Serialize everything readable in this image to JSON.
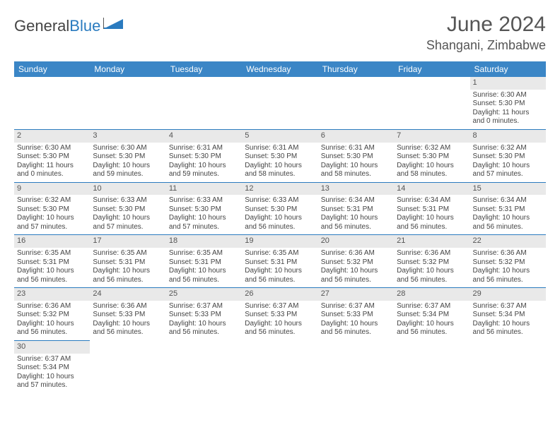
{
  "brand": {
    "part1": "General",
    "part2": "Blue"
  },
  "title": "June 2024",
  "location": "Shangani, Zimbabwe",
  "colors": {
    "header_bg": "#3b86c6",
    "header_text": "#ffffff",
    "daynum_bg": "#e9e9e9",
    "border": "#2a7bbf",
    "text": "#444444",
    "brand_blue": "#2a7bbf"
  },
  "day_headers": [
    "Sunday",
    "Monday",
    "Tuesday",
    "Wednesday",
    "Thursday",
    "Friday",
    "Saturday"
  ],
  "weeks": [
    [
      null,
      null,
      null,
      null,
      null,
      null,
      {
        "n": "1",
        "sr": "Sunrise: 6:30 AM",
        "ss": "Sunset: 5:30 PM",
        "d1": "Daylight: 11 hours",
        "d2": "and 0 minutes."
      }
    ],
    [
      {
        "n": "2",
        "sr": "Sunrise: 6:30 AM",
        "ss": "Sunset: 5:30 PM",
        "d1": "Daylight: 11 hours",
        "d2": "and 0 minutes."
      },
      {
        "n": "3",
        "sr": "Sunrise: 6:30 AM",
        "ss": "Sunset: 5:30 PM",
        "d1": "Daylight: 10 hours",
        "d2": "and 59 minutes."
      },
      {
        "n": "4",
        "sr": "Sunrise: 6:31 AM",
        "ss": "Sunset: 5:30 PM",
        "d1": "Daylight: 10 hours",
        "d2": "and 59 minutes."
      },
      {
        "n": "5",
        "sr": "Sunrise: 6:31 AM",
        "ss": "Sunset: 5:30 PM",
        "d1": "Daylight: 10 hours",
        "d2": "and 58 minutes."
      },
      {
        "n": "6",
        "sr": "Sunrise: 6:31 AM",
        "ss": "Sunset: 5:30 PM",
        "d1": "Daylight: 10 hours",
        "d2": "and 58 minutes."
      },
      {
        "n": "7",
        "sr": "Sunrise: 6:32 AM",
        "ss": "Sunset: 5:30 PM",
        "d1": "Daylight: 10 hours",
        "d2": "and 58 minutes."
      },
      {
        "n": "8",
        "sr": "Sunrise: 6:32 AM",
        "ss": "Sunset: 5:30 PM",
        "d1": "Daylight: 10 hours",
        "d2": "and 57 minutes."
      }
    ],
    [
      {
        "n": "9",
        "sr": "Sunrise: 6:32 AM",
        "ss": "Sunset: 5:30 PM",
        "d1": "Daylight: 10 hours",
        "d2": "and 57 minutes."
      },
      {
        "n": "10",
        "sr": "Sunrise: 6:33 AM",
        "ss": "Sunset: 5:30 PM",
        "d1": "Daylight: 10 hours",
        "d2": "and 57 minutes."
      },
      {
        "n": "11",
        "sr": "Sunrise: 6:33 AM",
        "ss": "Sunset: 5:30 PM",
        "d1": "Daylight: 10 hours",
        "d2": "and 57 minutes."
      },
      {
        "n": "12",
        "sr": "Sunrise: 6:33 AM",
        "ss": "Sunset: 5:30 PM",
        "d1": "Daylight: 10 hours",
        "d2": "and 56 minutes."
      },
      {
        "n": "13",
        "sr": "Sunrise: 6:34 AM",
        "ss": "Sunset: 5:31 PM",
        "d1": "Daylight: 10 hours",
        "d2": "and 56 minutes."
      },
      {
        "n": "14",
        "sr": "Sunrise: 6:34 AM",
        "ss": "Sunset: 5:31 PM",
        "d1": "Daylight: 10 hours",
        "d2": "and 56 minutes."
      },
      {
        "n": "15",
        "sr": "Sunrise: 6:34 AM",
        "ss": "Sunset: 5:31 PM",
        "d1": "Daylight: 10 hours",
        "d2": "and 56 minutes."
      }
    ],
    [
      {
        "n": "16",
        "sr": "Sunrise: 6:35 AM",
        "ss": "Sunset: 5:31 PM",
        "d1": "Daylight: 10 hours",
        "d2": "and 56 minutes."
      },
      {
        "n": "17",
        "sr": "Sunrise: 6:35 AM",
        "ss": "Sunset: 5:31 PM",
        "d1": "Daylight: 10 hours",
        "d2": "and 56 minutes."
      },
      {
        "n": "18",
        "sr": "Sunrise: 6:35 AM",
        "ss": "Sunset: 5:31 PM",
        "d1": "Daylight: 10 hours",
        "d2": "and 56 minutes."
      },
      {
        "n": "19",
        "sr": "Sunrise: 6:35 AM",
        "ss": "Sunset: 5:31 PM",
        "d1": "Daylight: 10 hours",
        "d2": "and 56 minutes."
      },
      {
        "n": "20",
        "sr": "Sunrise: 6:36 AM",
        "ss": "Sunset: 5:32 PM",
        "d1": "Daylight: 10 hours",
        "d2": "and 56 minutes."
      },
      {
        "n": "21",
        "sr": "Sunrise: 6:36 AM",
        "ss": "Sunset: 5:32 PM",
        "d1": "Daylight: 10 hours",
        "d2": "and 56 minutes."
      },
      {
        "n": "22",
        "sr": "Sunrise: 6:36 AM",
        "ss": "Sunset: 5:32 PM",
        "d1": "Daylight: 10 hours",
        "d2": "and 56 minutes."
      }
    ],
    [
      {
        "n": "23",
        "sr": "Sunrise: 6:36 AM",
        "ss": "Sunset: 5:32 PM",
        "d1": "Daylight: 10 hours",
        "d2": "and 56 minutes."
      },
      {
        "n": "24",
        "sr": "Sunrise: 6:36 AM",
        "ss": "Sunset: 5:33 PM",
        "d1": "Daylight: 10 hours",
        "d2": "and 56 minutes."
      },
      {
        "n": "25",
        "sr": "Sunrise: 6:37 AM",
        "ss": "Sunset: 5:33 PM",
        "d1": "Daylight: 10 hours",
        "d2": "and 56 minutes."
      },
      {
        "n": "26",
        "sr": "Sunrise: 6:37 AM",
        "ss": "Sunset: 5:33 PM",
        "d1": "Daylight: 10 hours",
        "d2": "and 56 minutes."
      },
      {
        "n": "27",
        "sr": "Sunrise: 6:37 AM",
        "ss": "Sunset: 5:33 PM",
        "d1": "Daylight: 10 hours",
        "d2": "and 56 minutes."
      },
      {
        "n": "28",
        "sr": "Sunrise: 6:37 AM",
        "ss": "Sunset: 5:34 PM",
        "d1": "Daylight: 10 hours",
        "d2": "and 56 minutes."
      },
      {
        "n": "29",
        "sr": "Sunrise: 6:37 AM",
        "ss": "Sunset: 5:34 PM",
        "d1": "Daylight: 10 hours",
        "d2": "and 56 minutes."
      }
    ],
    [
      {
        "n": "30",
        "sr": "Sunrise: 6:37 AM",
        "ss": "Sunset: 5:34 PM",
        "d1": "Daylight: 10 hours",
        "d2": "and 57 minutes."
      },
      null,
      null,
      null,
      null,
      null,
      null
    ]
  ]
}
